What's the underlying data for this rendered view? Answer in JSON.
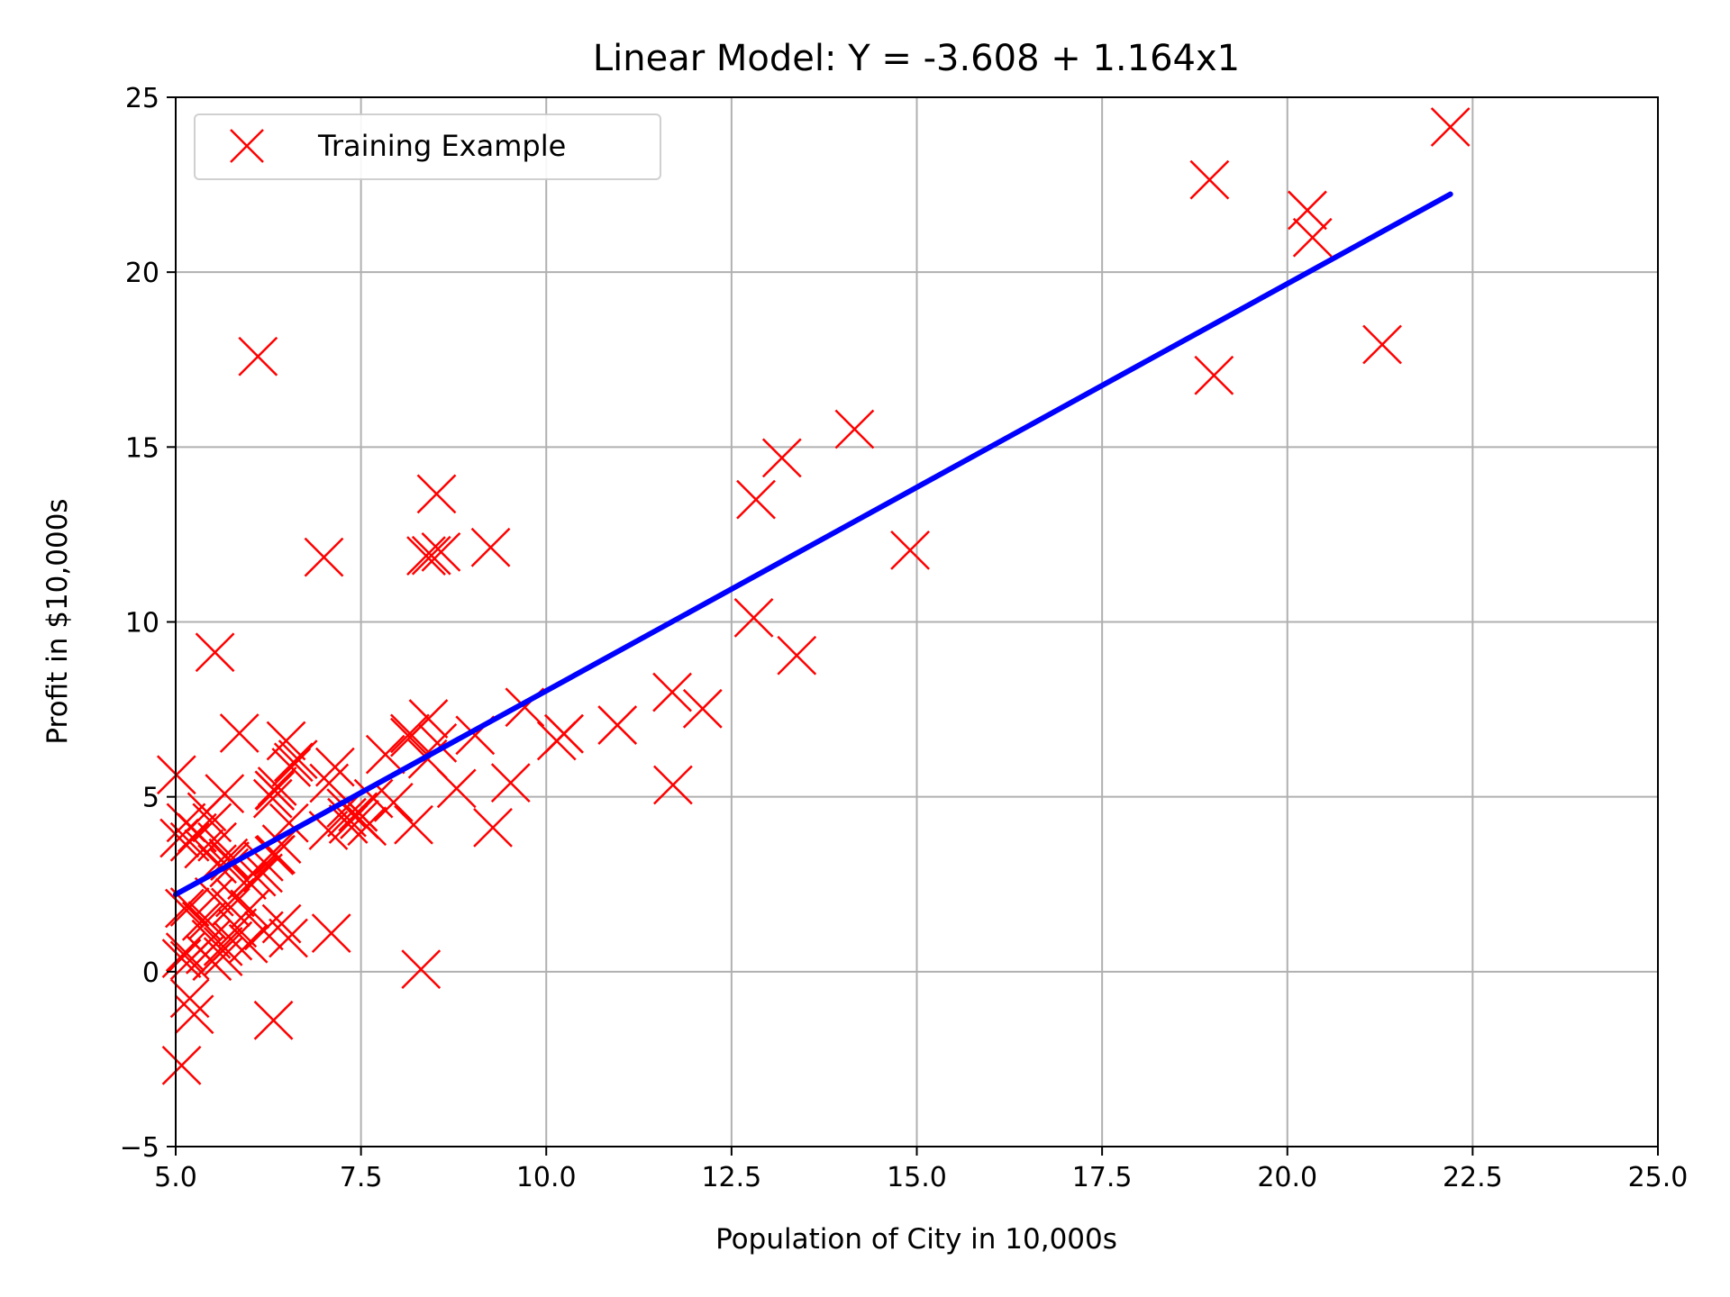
{
  "chart_data": {
    "type": "scatter",
    "title": "Linear Model: Y = -3.608 + 1.164x1",
    "xlabel": "Population of City in 10,000s",
    "ylabel": "Profit in $10,000s",
    "xlim": [
      5.0,
      25.0
    ],
    "ylim": [
      -5,
      25
    ],
    "xticks": [
      5.0,
      7.5,
      10.0,
      12.5,
      15.0,
      17.5,
      20.0,
      22.5,
      25.0
    ],
    "xtick_labels": [
      "5.0",
      "7.5",
      "10.0",
      "12.5",
      "15.0",
      "17.5",
      "20.0",
      "22.5",
      "25.0"
    ],
    "yticks": [
      -5,
      0,
      5,
      10,
      15,
      20,
      25
    ],
    "ytick_labels": [
      "−5",
      "0",
      "5",
      "10",
      "15",
      "20",
      "25"
    ],
    "grid": true,
    "legend": {
      "position": "top-left",
      "entries": [
        {
          "label": "Training Example",
          "marker": "x",
          "color": "#ff0000"
        }
      ]
    },
    "colors": {
      "points": "#ff0000",
      "fit_line": "#0000ff",
      "grid": "#b0b0b0"
    },
    "series": [
      {
        "name": "Training Example",
        "kind": "scatter",
        "marker": "x",
        "points": [
          [
            6.11,
            17.59
          ],
          [
            5.53,
            9.13
          ],
          [
            8.52,
            13.66
          ],
          [
            7.0,
            11.85
          ],
          [
            5.86,
            6.82
          ],
          [
            8.38,
            11.89
          ],
          [
            7.48,
            4.35
          ],
          [
            8.58,
            12.0
          ],
          [
            6.49,
            6.6
          ],
          [
            5.05,
            3.82
          ],
          [
            5.71,
            3.25
          ],
          [
            14.16,
            15.51
          ],
          [
            5.73,
            3.16
          ],
          [
            8.41,
            7.23
          ],
          [
            5.64,
            0.72
          ],
          [
            5.38,
            3.51
          ],
          [
            6.37,
            5.3
          ],
          [
            5.13,
            0.56
          ],
          [
            6.43,
            3.65
          ],
          [
            7.07,
            5.39
          ],
          [
            6.19,
            3.14
          ],
          [
            20.27,
            21.77
          ],
          [
            5.49,
            4.26
          ],
          [
            6.33,
            5.19
          ],
          [
            5.56,
            3.08
          ],
          [
            18.95,
            22.64
          ],
          [
            12.83,
            13.5
          ],
          [
            10.96,
            7.05
          ],
          [
            13.18,
            14.69
          ],
          [
            22.2,
            24.15
          ],
          [
            5.25,
            -1.22
          ],
          [
            6.59,
            5.99
          ],
          [
            9.25,
            12.13
          ],
          [
            5.19,
            1.85
          ],
          [
            8.53,
            6.54
          ],
          [
            7.46,
            4.56
          ],
          [
            10.14,
            6.6
          ],
          [
            6.65,
            6.07
          ],
          [
            6.53,
            4.25
          ],
          [
            5.56,
            3.71
          ],
          [
            7.31,
            4.41
          ],
          [
            5.08,
            0.38
          ],
          [
            6.34,
            5.17
          ],
          [
            5.74,
            1.84
          ],
          [
            6.19,
            1.17
          ],
          [
            5.8,
            2.12
          ],
          [
            12.11,
            7.52
          ],
          [
            10.24,
            6.8
          ],
          [
            5.35,
            1.44
          ],
          [
            8.16,
            6.81
          ],
          [
            5.66,
            5.09
          ],
          [
            5.52,
            2.14
          ],
          [
            9.28,
            4.12
          ],
          [
            6.33,
            3.32
          ],
          [
            7.3,
            4.68
          ],
          [
            5.77,
            0.88
          ],
          [
            7.06,
            4.04
          ],
          [
            5.01,
            5.63
          ],
          [
            11.71,
            5.34
          ],
          [
            6.35,
            3.35
          ],
          [
            6.52,
            0.96
          ],
          [
            7.33,
            4.22
          ],
          [
            5.19,
            0.32
          ],
          [
            21.28,
            17.93
          ],
          [
            14.91,
            12.05
          ],
          [
            19.01,
            17.05
          ],
          [
            7.94,
            4.84
          ],
          [
            5.83,
            1.25
          ],
          [
            6.09,
            2.71
          ],
          [
            5.49,
            0.3
          ],
          [
            5.72,
            2.97
          ],
          [
            5.4,
            0.49
          ],
          [
            6.32,
            -1.39
          ],
          [
            8.31,
            0.07
          ],
          [
            8.16,
            6.7
          ],
          [
            9.52,
            5.4
          ],
          [
            5.19,
            -0.76
          ],
          [
            8.4,
            6.08
          ],
          [
            5.64,
            0.43
          ],
          [
            6.56,
            5.84
          ],
          [
            5.12,
            1.81
          ],
          [
            7.46,
            4.57
          ],
          [
            6.31,
            4.95
          ],
          [
            5.19,
            3.71
          ],
          [
            5.14,
            4.26
          ],
          [
            5.96,
            2.62
          ],
          [
            7.15,
            5.85
          ],
          [
            6.43,
            1.37
          ],
          [
            5.43,
            1.46
          ],
          [
            6.0,
            1.79
          ],
          [
            7.83,
            6.21
          ],
          [
            5.42,
            4.57
          ],
          [
            5.98,
            0.8
          ],
          [
            5.29,
            3.97
          ],
          [
            5.08,
            -2.68
          ],
          [
            5.48,
            0.93
          ],
          [
            6.18,
            2.82
          ],
          [
            8.21,
            4.2
          ],
          [
            9.04,
            6.76
          ],
          [
            9.71,
            7.56
          ],
          [
            10.24,
            6.8
          ],
          [
            12.8,
            10.12
          ],
          [
            13.38,
            9.04
          ],
          [
            11.7,
            7.99
          ],
          [
            20.34,
            20.99
          ],
          [
            8.45,
            11.9
          ],
          [
            7.67,
            4.95
          ],
          [
            8.79,
            5.24
          ],
          [
            7.1,
            1.1
          ],
          [
            7.58,
            4.16
          ]
        ]
      },
      {
        "name": "",
        "kind": "line",
        "points": [
          [
            5.0,
            2.21
          ],
          [
            22.2,
            22.23
          ]
        ]
      }
    ]
  }
}
